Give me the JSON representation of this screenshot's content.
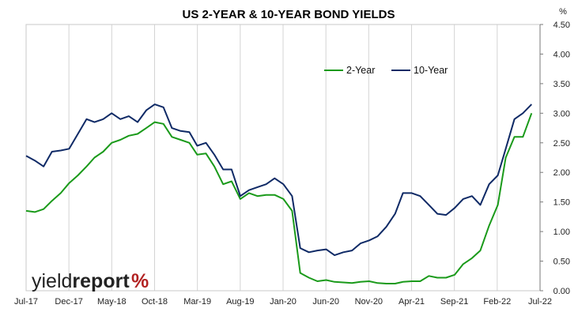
{
  "chart_data": {
    "type": "line",
    "title": "US 2-YEAR & 10-YEAR BOND YIELDS",
    "y_unit": "%",
    "ylim": [
      0,
      4.5
    ],
    "y_ticks": [
      "0.00",
      "0.50",
      "1.00",
      "1.50",
      "2.00",
      "2.50",
      "3.00",
      "3.50",
      "4.00",
      "4.50"
    ],
    "x_ticks": [
      "Jul-17",
      "Dec-17",
      "May-18",
      "Oct-18",
      "Mar-19",
      "Aug-19",
      "Jan-20",
      "Jun-20",
      "Nov-20",
      "Apr-21",
      "Sep-21",
      "Feb-22",
      "Jul-22"
    ],
    "xlim": [
      "2017-07-01",
      "2022-07-01"
    ],
    "legend_position": "top-right",
    "grid": {
      "vertical": true,
      "horizontal": false
    },
    "colors": {
      "2-Year": "#1a9a1a",
      "10-Year": "#0f2a66"
    },
    "series": [
      {
        "name": "2-Year",
        "x": [
          "2017-07-01",
          "2017-08-01",
          "2017-09-01",
          "2017-10-01",
          "2017-11-01",
          "2017-12-01",
          "2018-01-01",
          "2018-02-01",
          "2018-03-01",
          "2018-04-01",
          "2018-05-01",
          "2018-06-01",
          "2018-07-01",
          "2018-08-01",
          "2018-09-01",
          "2018-10-01",
          "2018-11-01",
          "2018-12-01",
          "2019-01-01",
          "2019-02-01",
          "2019-03-01",
          "2019-04-01",
          "2019-05-01",
          "2019-06-01",
          "2019-07-01",
          "2019-08-01",
          "2019-09-01",
          "2019-10-01",
          "2019-11-01",
          "2019-12-01",
          "2020-01-01",
          "2020-02-01",
          "2020-03-01",
          "2020-04-01",
          "2020-05-01",
          "2020-06-01",
          "2020-07-01",
          "2020-08-01",
          "2020-09-01",
          "2020-10-01",
          "2020-11-01",
          "2020-12-01",
          "2021-01-01",
          "2021-02-01",
          "2021-03-01",
          "2021-04-01",
          "2021-05-01",
          "2021-06-01",
          "2021-07-01",
          "2021-08-01",
          "2021-09-01",
          "2021-10-01",
          "2021-11-01",
          "2021-12-01",
          "2022-01-01",
          "2022-02-01",
          "2022-03-01",
          "2022-04-01",
          "2022-05-01",
          "2022-06-01"
        ],
        "values": [
          1.35,
          1.33,
          1.38,
          1.52,
          1.65,
          1.82,
          1.95,
          2.1,
          2.25,
          2.35,
          2.5,
          2.55,
          2.62,
          2.65,
          2.75,
          2.85,
          2.82,
          2.6,
          2.55,
          2.5,
          2.3,
          2.32,
          2.1,
          1.8,
          1.85,
          1.55,
          1.65,
          1.6,
          1.62,
          1.62,
          1.55,
          1.35,
          0.3,
          0.22,
          0.16,
          0.18,
          0.15,
          0.14,
          0.13,
          0.15,
          0.16,
          0.13,
          0.12,
          0.12,
          0.15,
          0.16,
          0.16,
          0.25,
          0.22,
          0.22,
          0.27,
          0.45,
          0.55,
          0.68,
          1.1,
          1.45,
          2.25,
          2.6,
          2.6,
          3.0
        ]
      },
      {
        "name": "10-Year",
        "x": [
          "2017-07-01",
          "2017-08-01",
          "2017-09-01",
          "2017-10-01",
          "2017-11-01",
          "2017-12-01",
          "2018-01-01",
          "2018-02-01",
          "2018-03-01",
          "2018-04-01",
          "2018-05-01",
          "2018-06-01",
          "2018-07-01",
          "2018-08-01",
          "2018-09-01",
          "2018-10-01",
          "2018-11-01",
          "2018-12-01",
          "2019-01-01",
          "2019-02-01",
          "2019-03-01",
          "2019-04-01",
          "2019-05-01",
          "2019-06-01",
          "2019-07-01",
          "2019-08-01",
          "2019-09-01",
          "2019-10-01",
          "2019-11-01",
          "2019-12-01",
          "2020-01-01",
          "2020-02-01",
          "2020-03-01",
          "2020-04-01",
          "2020-05-01",
          "2020-06-01",
          "2020-07-01",
          "2020-08-01",
          "2020-09-01",
          "2020-10-01",
          "2020-11-01",
          "2020-12-01",
          "2021-01-01",
          "2021-02-01",
          "2021-03-01",
          "2021-04-01",
          "2021-05-01",
          "2021-06-01",
          "2021-07-01",
          "2021-08-01",
          "2021-09-01",
          "2021-10-01",
          "2021-11-01",
          "2021-12-01",
          "2022-01-01",
          "2022-02-01",
          "2022-03-01",
          "2022-04-01",
          "2022-05-01",
          "2022-06-01"
        ],
        "values": [
          2.28,
          2.2,
          2.1,
          2.35,
          2.37,
          2.4,
          2.65,
          2.9,
          2.85,
          2.9,
          3.0,
          2.9,
          2.95,
          2.85,
          3.05,
          3.15,
          3.1,
          2.75,
          2.7,
          2.68,
          2.45,
          2.5,
          2.3,
          2.05,
          2.05,
          1.6,
          1.7,
          1.75,
          1.8,
          1.9,
          1.8,
          1.6,
          0.72,
          0.65,
          0.68,
          0.7,
          0.6,
          0.65,
          0.68,
          0.8,
          0.85,
          0.92,
          1.08,
          1.3,
          1.65,
          1.65,
          1.6,
          1.45,
          1.3,
          1.28,
          1.4,
          1.55,
          1.6,
          1.45,
          1.8,
          1.95,
          2.4,
          2.9,
          3.0,
          3.15
        ]
      }
    ]
  },
  "logo": {
    "text_light": "yield",
    "text_bold": "report",
    "symbol": "%"
  }
}
